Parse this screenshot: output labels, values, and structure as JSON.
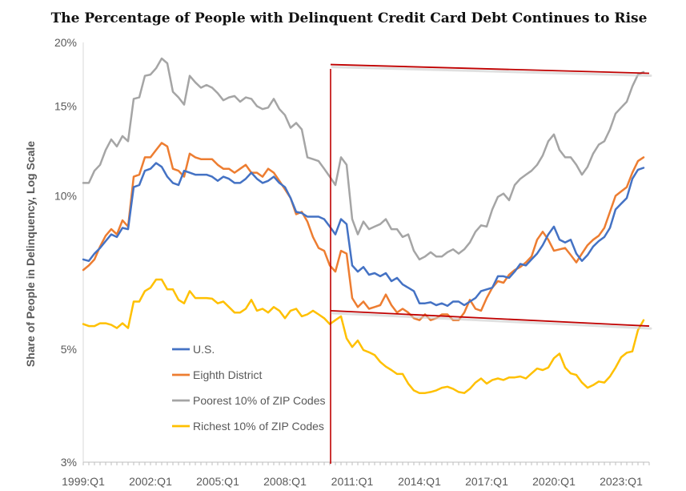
{
  "chart_data": {
    "type": "line",
    "title": "The Percentage of People with Delinquent Credit Card Debt Continues to Rise",
    "ylabel": "Share of People in Delinquency, Log Scale",
    "xlabel": "",
    "y_scale": "log",
    "ylim": [
      3,
      20
    ],
    "y_ticks": [
      {
        "value": 20,
        "label": "20%"
      },
      {
        "value": 15,
        "label": "15%"
      },
      {
        "value": 10,
        "label": "10%"
      },
      {
        "value": 5,
        "label": "5%"
      },
      {
        "value": 3,
        "label": "3%"
      }
    ],
    "x_tick_labels": [
      "1999:Q1",
      "2002:Q1",
      "2005:Q1",
      "2008:Q1",
      "2011:Q1",
      "2014:Q1",
      "2017:Q1",
      "2020:Q1",
      "2023:Q1"
    ],
    "x_start": "1999:Q1",
    "x_end": "2024:Q2",
    "legend_position": "lower-left",
    "series": [
      {
        "name": "U.S.",
        "color": "#4472C4",
        "values": [
          7.5,
          7.45,
          7.7,
          7.9,
          8.15,
          8.4,
          8.3,
          8.65,
          8.6,
          10.4,
          10.5,
          11.2,
          11.3,
          11.6,
          11.4,
          10.9,
          10.6,
          10.5,
          11.2,
          11.1,
          11.0,
          11.0,
          11.0,
          10.9,
          10.7,
          10.9,
          10.8,
          10.6,
          10.6,
          10.8,
          11.1,
          10.8,
          10.6,
          10.7,
          10.9,
          10.6,
          10.4,
          9.9,
          9.3,
          9.25,
          9.1,
          9.1,
          9.1,
          9.0,
          8.7,
          8.4,
          9.0,
          8.8,
          7.3,
          7.1,
          7.25,
          7.0,
          7.05,
          6.95,
          7.05,
          6.8,
          6.9,
          6.7,
          6.6,
          6.5,
          6.15,
          6.15,
          6.18,
          6.1,
          6.15,
          6.08,
          6.2,
          6.2,
          6.1,
          6.2,
          6.3,
          6.5,
          6.55,
          6.6,
          6.95,
          6.95,
          6.9,
          7.1,
          7.35,
          7.3,
          7.5,
          7.7,
          8.0,
          8.4,
          8.7,
          8.2,
          8.1,
          8.2,
          7.7,
          7.45,
          7.65,
          7.95,
          8.15,
          8.3,
          8.65,
          9.4,
          9.65,
          9.9,
          10.8,
          11.25,
          11.35
        ]
      },
      {
        "name": "Eighth District",
        "color": "#ED7D31",
        "values": [
          7.15,
          7.3,
          7.5,
          7.95,
          8.35,
          8.6,
          8.4,
          8.95,
          8.7,
          10.9,
          11.0,
          11.9,
          11.9,
          12.3,
          12.7,
          12.5,
          11.3,
          11.2,
          10.9,
          12.1,
          11.9,
          11.8,
          11.8,
          11.8,
          11.5,
          11.3,
          11.3,
          11.1,
          11.3,
          11.5,
          11.1,
          11.1,
          10.9,
          11.3,
          11.1,
          10.7,
          10.3,
          9.9,
          9.2,
          9.3,
          8.9,
          8.3,
          7.9,
          7.8,
          7.3,
          7.1,
          7.8,
          7.7,
          6.3,
          6.05,
          6.2,
          6.0,
          6.05,
          6.1,
          6.4,
          6.1,
          5.9,
          6.0,
          5.9,
          5.75,
          5.7,
          5.85,
          5.7,
          5.75,
          5.85,
          5.85,
          5.7,
          5.7,
          5.9,
          6.25,
          6.0,
          5.95,
          6.3,
          6.6,
          6.8,
          6.75,
          7.0,
          7.15,
          7.25,
          7.4,
          7.6,
          8.2,
          8.5,
          8.2,
          7.8,
          7.85,
          7.9,
          7.65,
          7.4,
          7.7,
          8.0,
          8.2,
          8.35,
          8.65,
          9.3,
          10.0,
          10.2,
          10.4,
          11.1,
          11.7,
          11.9
        ]
      },
      {
        "name": "Poorest 10% of ZIP Codes",
        "color": "#A5A5A5",
        "values": [
          10.6,
          10.6,
          11.2,
          11.5,
          12.3,
          12.9,
          12.5,
          13.1,
          12.8,
          15.5,
          15.6,
          17.2,
          17.3,
          17.8,
          18.6,
          18.2,
          16.0,
          15.6,
          15.1,
          17.2,
          16.7,
          16.3,
          16.5,
          16.3,
          15.9,
          15.4,
          15.6,
          15.7,
          15.3,
          15.6,
          15.5,
          15.0,
          14.8,
          14.9,
          15.5,
          14.8,
          14.4,
          13.6,
          13.9,
          13.5,
          11.9,
          11.8,
          11.7,
          11.3,
          10.9,
          10.5,
          11.9,
          11.5,
          9.0,
          8.4,
          8.9,
          8.6,
          8.7,
          8.8,
          9.0,
          8.6,
          8.6,
          8.3,
          8.4,
          7.8,
          7.5,
          7.6,
          7.75,
          7.6,
          7.6,
          7.75,
          7.85,
          7.7,
          7.85,
          8.1,
          8.5,
          8.75,
          8.7,
          9.4,
          9.95,
          10.1,
          9.8,
          10.5,
          10.8,
          11.0,
          11.2,
          11.5,
          12.0,
          12.8,
          13.2,
          12.3,
          11.9,
          11.9,
          11.5,
          11.0,
          11.4,
          12.1,
          12.6,
          12.8,
          13.5,
          14.5,
          14.9,
          15.3,
          16.4,
          17.3,
          17.5
        ]
      },
      {
        "name": "Richest 10% of ZIP Codes",
        "color": "#FFC000",
        "values": [
          5.6,
          5.55,
          5.55,
          5.62,
          5.62,
          5.58,
          5.5,
          5.62,
          5.5,
          6.2,
          6.2,
          6.5,
          6.6,
          6.85,
          6.85,
          6.55,
          6.55,
          6.25,
          6.15,
          6.5,
          6.3,
          6.3,
          6.3,
          6.28,
          6.15,
          6.2,
          6.05,
          5.9,
          5.9,
          6.0,
          6.25,
          5.95,
          6.0,
          5.9,
          6.05,
          5.95,
          5.75,
          5.95,
          6.0,
          5.8,
          5.85,
          5.95,
          5.85,
          5.75,
          5.6,
          5.7,
          5.8,
          5.25,
          5.05,
          5.2,
          4.98,
          4.93,
          4.87,
          4.72,
          4.62,
          4.55,
          4.47,
          4.47,
          4.28,
          4.15,
          4.1,
          4.1,
          4.12,
          4.15,
          4.2,
          4.22,
          4.18,
          4.12,
          4.1,
          4.18,
          4.3,
          4.38,
          4.28,
          4.35,
          4.38,
          4.35,
          4.4,
          4.4,
          4.42,
          4.38,
          4.48,
          4.58,
          4.55,
          4.6,
          4.8,
          4.9,
          4.6,
          4.48,
          4.45,
          4.3,
          4.2,
          4.25,
          4.32,
          4.3,
          4.42,
          4.6,
          4.82,
          4.92,
          4.95,
          5.45,
          5.7
        ]
      }
    ],
    "annotations": [
      {
        "kind": "vertical-line",
        "color": "#C00000",
        "x_label": "2010:Q1"
      },
      {
        "kind": "trend-line",
        "color": "#C00000",
        "from": {
          "x_label": "2010:Q1",
          "y": 18.1
        },
        "to": {
          "x_label": "2024:Q2",
          "y": 17.4
        }
      },
      {
        "kind": "trend-line",
        "color": "#C00000",
        "from": {
          "x_label": "2010:Q1",
          "y": 5.95
        },
        "to": {
          "x_label": "2024:Q2",
          "y": 5.55
        }
      }
    ]
  }
}
